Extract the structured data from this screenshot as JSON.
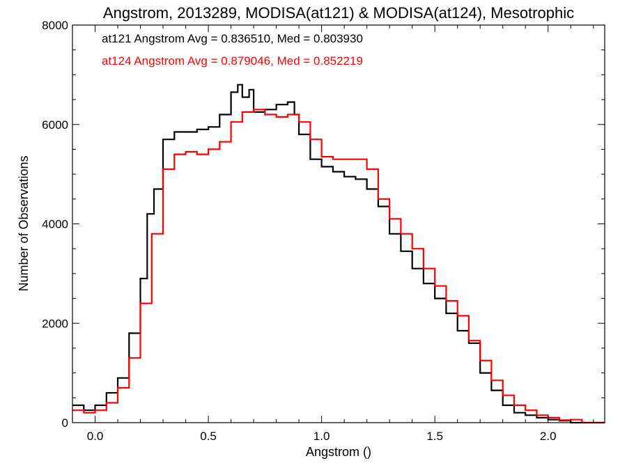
{
  "chart_data": {
    "type": "line",
    "title": "Angstrom, 2013289, MODISA(at121) & MODISA(at124), Mesotrophic",
    "xlabel": "Angstrom ()",
    "ylabel": "Number of Observations",
    "xlim": [
      -0.1,
      2.25
    ],
    "ylim": [
      0,
      8000
    ],
    "x_ticks": [
      0.0,
      0.5,
      1.0,
      1.5,
      2.0
    ],
    "x_tick_labels": [
      "0.0",
      "0.5",
      "1.0",
      "1.5",
      "2.0"
    ],
    "y_ticks": [
      0,
      2000,
      4000,
      6000,
      8000
    ],
    "y_tick_labels": [
      "0",
      "2000",
      "4000",
      "6000",
      "8000"
    ],
    "grid": false,
    "annotations": [
      {
        "text": "at121 Angstrom Avg = 0.836510, Med = 0.803930",
        "color": "#000000"
      },
      {
        "text": "at124 Angstrom Avg = 0.879046, Med = 0.852219",
        "color": "#ff0000"
      }
    ],
    "series": [
      {
        "color": "#000000",
        "step": true,
        "x": [
          -0.1,
          -0.05,
          0.0,
          0.05,
          0.1,
          0.15,
          0.2,
          0.23,
          0.26,
          0.3,
          0.35,
          0.4,
          0.45,
          0.5,
          0.55,
          0.6,
          0.63,
          0.65,
          0.68,
          0.7,
          0.75,
          0.8,
          0.85,
          0.88,
          0.9,
          0.95,
          1.0,
          1.05,
          1.1,
          1.15,
          1.2,
          1.25,
          1.3,
          1.35,
          1.4,
          1.45,
          1.5,
          1.55,
          1.6,
          1.65,
          1.7,
          1.75,
          1.8,
          1.85,
          1.9,
          1.95,
          2.0,
          2.05,
          2.1,
          2.15,
          2.2,
          2.25
        ],
        "y": [
          350,
          250,
          350,
          600,
          900,
          1800,
          2900,
          4200,
          4700,
          5700,
          5850,
          5850,
          5900,
          5950,
          6200,
          6650,
          6800,
          6550,
          6700,
          6250,
          6300,
          6400,
          6450,
          6200,
          5800,
          5300,
          5150,
          5050,
          4950,
          4900,
          4700,
          4350,
          3800,
          3450,
          3100,
          2800,
          2500,
          2200,
          1850,
          1600,
          1000,
          650,
          350,
          200,
          150,
          100,
          60,
          40,
          0,
          0,
          0,
          0
        ]
      },
      {
        "color": "#ff0000",
        "step": true,
        "x": [
          -0.1,
          -0.05,
          0.0,
          0.05,
          0.1,
          0.15,
          0.2,
          0.25,
          0.3,
          0.35,
          0.4,
          0.45,
          0.5,
          0.55,
          0.6,
          0.65,
          0.7,
          0.75,
          0.8,
          0.85,
          0.9,
          0.95,
          1.0,
          1.05,
          1.1,
          1.15,
          1.2,
          1.25,
          1.3,
          1.35,
          1.4,
          1.45,
          1.5,
          1.55,
          1.6,
          1.65,
          1.7,
          1.75,
          1.8,
          1.85,
          1.9,
          1.95,
          2.0,
          2.05,
          2.1,
          2.15,
          2.2,
          2.25
        ],
        "y": [
          250,
          200,
          250,
          400,
          700,
          1300,
          2400,
          3800,
          5100,
          5400,
          5450,
          5400,
          5500,
          5650,
          6050,
          6250,
          6300,
          6200,
          6150,
          6200,
          6050,
          5700,
          5350,
          5300,
          5300,
          5300,
          5100,
          4500,
          4100,
          3800,
          3500,
          3100,
          2750,
          2450,
          2150,
          1650,
          1250,
          850,
          550,
          350,
          250,
          150,
          100,
          50,
          60,
          0,
          0,
          0
        ]
      }
    ]
  }
}
